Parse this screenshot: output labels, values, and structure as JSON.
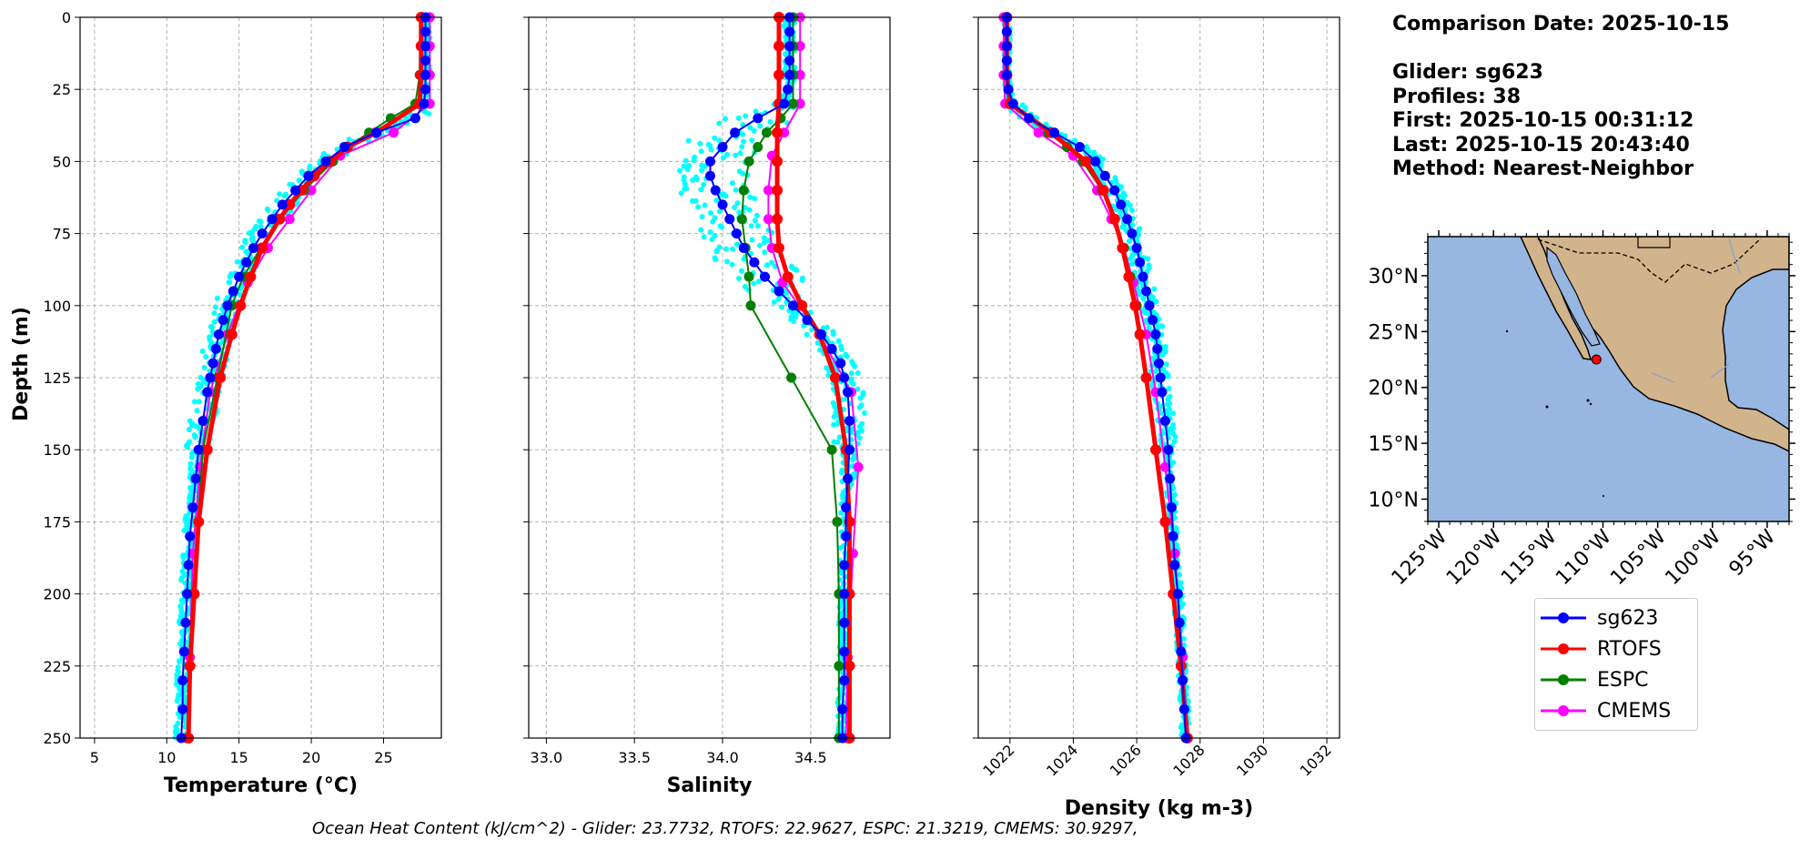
{
  "info": {
    "line1": "Comparison Date: 2025-10-15",
    "line2": "Glider: sg623",
    "line3": "Profiles: 38",
    "line4": "First: 2025-10-15 00:31:12",
    "line5": "Last: 2025-10-15 20:43:40",
    "line6": "Method: Nearest-Neighbor"
  },
  "footer": "Ocean Heat Content (kJ/cm^2) - Glider: 23.7732,  RTOFS: 22.9627,  ESPC: 21.3219,  CMEMS: 30.9297,",
  "legend": [
    {
      "name": "sg623",
      "color": "#0000ff"
    },
    {
      "name": "RTOFS",
      "color": "#ff0000"
    },
    {
      "name": "ESPC",
      "color": "#008000"
    },
    {
      "name": "CMEMS",
      "color": "#ff00ff"
    }
  ],
  "colors": {
    "scatter": "#00ffff",
    "land": "#d2b48c",
    "ocean": "#97b6e1"
  },
  "chart_data": [
    {
      "type": "line",
      "title": "",
      "xlabel": "Temperature (°C)",
      "ylabel": "Depth (m)",
      "xlim": [
        4,
        29
      ],
      "ylim": [
        250,
        0
      ],
      "xticks": [
        5,
        10,
        15,
        20,
        25
      ],
      "yticks": [
        0,
        25,
        50,
        75,
        100,
        125,
        150,
        175,
        200,
        225,
        250
      ],
      "series": [
        {
          "name": "sg623",
          "color": "#0000ff",
          "depth": [
            0,
            5,
            10,
            15,
            20,
            25,
            30,
            35,
            40,
            45,
            50,
            55,
            60,
            65,
            70,
            75,
            80,
            85,
            90,
            95,
            100,
            105,
            110,
            115,
            120,
            125,
            130,
            140,
            150,
            160,
            170,
            180,
            190,
            200,
            210,
            220,
            230,
            240,
            250
          ],
          "values": [
            27.9,
            27.9,
            27.9,
            27.9,
            27.9,
            27.9,
            27.8,
            27.2,
            24.5,
            22.3,
            21.0,
            19.8,
            18.9,
            18.0,
            17.3,
            16.6,
            16.0,
            15.5,
            15.0,
            14.6,
            14.2,
            13.9,
            13.6,
            13.4,
            13.2,
            13.0,
            12.8,
            12.5,
            12.2,
            12.0,
            11.8,
            11.6,
            11.5,
            11.4,
            11.3,
            11.2,
            11.1,
            11.1,
            11.0
          ]
        },
        {
          "name": "RTOFS",
          "color": "#ff0000",
          "depth": [
            0,
            10,
            20,
            30,
            40,
            45,
            50,
            55,
            60,
            65,
            70,
            80,
            90,
            100,
            110,
            125,
            150,
            175,
            200,
            225,
            250
          ],
          "values": [
            27.6,
            27.6,
            27.6,
            27.5,
            24.5,
            22.5,
            21.3,
            20.2,
            19.3,
            18.5,
            17.8,
            16.6,
            15.8,
            15.1,
            14.5,
            13.7,
            12.8,
            12.2,
            11.9,
            11.6,
            11.5
          ]
        },
        {
          "name": "ESPC",
          "color": "#008000",
          "depth": [
            0,
            10,
            20,
            30,
            35,
            40,
            45,
            50,
            60,
            70,
            80,
            90,
            100,
            125,
            150,
            200,
            250
          ],
          "values": [
            27.6,
            27.6,
            27.5,
            27.2,
            25.5,
            24.0,
            22.5,
            21.5,
            19.5,
            17.8,
            16.5,
            15.3,
            14.5,
            13.5,
            12.5,
            11.8,
            11.4
          ]
        },
        {
          "name": "CMEMS",
          "color": "#ff00ff",
          "depth": [
            0,
            10,
            20,
            30,
            40,
            48,
            60,
            70,
            80,
            92,
            110,
            130,
            156,
            186,
            222,
            250
          ],
          "values": [
            28.2,
            28.2,
            28.2,
            28.2,
            25.7,
            22.0,
            20.0,
            18.5,
            17.0,
            15.6,
            14.2,
            13.0,
            12.3,
            11.8,
            11.6,
            11.4
          ]
        }
      ]
    },
    {
      "type": "line",
      "title": "",
      "xlabel": "Salinity",
      "ylabel": "",
      "xlim": [
        32.9,
        34.95
      ],
      "ylim": [
        250,
        0
      ],
      "xticks": [
        33.0,
        33.5,
        34.0,
        34.5
      ],
      "series": [
        {
          "name": "sg623",
          "color": "#0000ff",
          "depth": [
            0,
            5,
            10,
            15,
            20,
            25,
            30,
            35,
            40,
            45,
            50,
            55,
            60,
            65,
            70,
            75,
            80,
            85,
            90,
            95,
            100,
            105,
            110,
            115,
            120,
            125,
            130,
            140,
            150,
            160,
            170,
            180,
            190,
            200,
            210,
            220,
            230,
            240,
            250
          ],
          "values": [
            34.38,
            34.38,
            34.38,
            34.38,
            34.38,
            34.37,
            34.35,
            34.2,
            34.07,
            34.0,
            33.93,
            33.93,
            33.96,
            34.0,
            34.04,
            34.08,
            34.12,
            34.18,
            34.24,
            34.32,
            34.4,
            34.48,
            34.56,
            34.62,
            34.67,
            34.69,
            34.71,
            34.72,
            34.72,
            34.71,
            34.7,
            34.7,
            34.69,
            34.69,
            34.69,
            34.69,
            34.69,
            34.68,
            34.68
          ]
        },
        {
          "name": "RTOFS",
          "color": "#ff0000",
          "depth": [
            0,
            10,
            20,
            30,
            40,
            50,
            60,
            70,
            80,
            90,
            100,
            110,
            125,
            150,
            175,
            200,
            225,
            250
          ],
          "values": [
            34.32,
            34.32,
            34.32,
            34.32,
            34.31,
            34.31,
            34.31,
            34.31,
            34.32,
            34.37,
            34.45,
            34.55,
            34.64,
            34.7,
            34.72,
            34.72,
            34.72,
            34.72
          ]
        },
        {
          "name": "ESPC",
          "color": "#008000",
          "depth": [
            0,
            10,
            20,
            30,
            35,
            40,
            45,
            50,
            60,
            70,
            80,
            90,
            100,
            125,
            150,
            175,
            200,
            225,
            250
          ],
          "values": [
            34.4,
            34.4,
            34.4,
            34.4,
            34.33,
            34.25,
            34.2,
            34.15,
            34.12,
            34.11,
            34.13,
            34.15,
            34.16,
            34.39,
            34.62,
            34.65,
            34.66,
            34.66,
            34.66
          ]
        },
        {
          "name": "CMEMS",
          "color": "#ff00ff",
          "depth": [
            0,
            10,
            20,
            30,
            40,
            48,
            60,
            70,
            80,
            92,
            110,
            130,
            156,
            186,
            222,
            250
          ],
          "values": [
            34.44,
            34.44,
            34.44,
            34.44,
            34.35,
            34.28,
            34.26,
            34.26,
            34.28,
            34.34,
            34.55,
            34.73,
            34.77,
            34.74,
            34.71,
            34.7
          ]
        }
      ]
    },
    {
      "type": "line",
      "title": "",
      "xlabel": "Density (kg m-3)",
      "ylabel": "",
      "xlim": [
        1021.0,
        1032.4
      ],
      "ylim": [
        250,
        0
      ],
      "xticks": [
        1022,
        1024,
        1026,
        1028,
        1030,
        1032
      ],
      "series": [
        {
          "name": "sg623",
          "color": "#0000ff",
          "depth": [
            0,
            5,
            10,
            15,
            20,
            25,
            30,
            35,
            40,
            45,
            50,
            55,
            60,
            65,
            70,
            75,
            80,
            85,
            90,
            95,
            100,
            105,
            110,
            115,
            120,
            125,
            130,
            140,
            150,
            160,
            170,
            180,
            190,
            200,
            210,
            220,
            230,
            240,
            250
          ],
          "values": [
            1021.9,
            1021.9,
            1021.9,
            1021.9,
            1021.9,
            1021.95,
            1022.1,
            1022.6,
            1023.4,
            1024.2,
            1024.7,
            1025.0,
            1025.3,
            1025.5,
            1025.7,
            1025.85,
            1026.0,
            1026.1,
            1026.2,
            1026.3,
            1026.4,
            1026.5,
            1026.6,
            1026.65,
            1026.7,
            1026.75,
            1026.8,
            1026.9,
            1027.0,
            1027.05,
            1027.1,
            1027.15,
            1027.2,
            1027.3,
            1027.35,
            1027.4,
            1027.45,
            1027.5,
            1027.55
          ]
        },
        {
          "name": "RTOFS",
          "color": "#ff0000",
          "depth": [
            0,
            10,
            20,
            30,
            40,
            50,
            60,
            70,
            80,
            90,
            100,
            110,
            125,
            150,
            175,
            200,
            225,
            250
          ],
          "values": [
            1021.9,
            1021.9,
            1021.9,
            1022.0,
            1023.3,
            1024.4,
            1024.95,
            1025.3,
            1025.55,
            1025.75,
            1025.95,
            1026.1,
            1026.3,
            1026.6,
            1026.9,
            1027.15,
            1027.4,
            1027.6
          ]
        },
        {
          "name": "ESPC",
          "color": "#008000",
          "depth": [
            0,
            10,
            20,
            30,
            35,
            40,
            45,
            50,
            60,
            70,
            80,
            90,
            100,
            125,
            150,
            175,
            200,
            225,
            250
          ],
          "values": [
            1021.9,
            1021.9,
            1021.9,
            1022.0,
            1022.6,
            1023.2,
            1023.8,
            1024.3,
            1024.9,
            1025.3,
            1025.6,
            1025.8,
            1026.0,
            1026.3,
            1026.6,
            1026.9,
            1027.2,
            1027.4,
            1027.6
          ]
        },
        {
          "name": "CMEMS",
          "color": "#ff00ff",
          "depth": [
            0,
            10,
            20,
            30,
            40,
            48,
            60,
            70,
            80,
            92,
            110,
            130,
            156,
            186,
            222,
            250
          ],
          "values": [
            1021.8,
            1021.8,
            1021.8,
            1021.85,
            1022.9,
            1024.0,
            1024.75,
            1025.2,
            1025.6,
            1025.9,
            1026.3,
            1026.6,
            1026.9,
            1027.2,
            1027.45,
            1027.6
          ]
        }
      ]
    },
    {
      "type": "map",
      "xlim": [
        -126,
        -93
      ],
      "ylim": [
        8,
        33.5
      ],
      "xticks": [
        -125,
        -120,
        -115,
        -110,
        -105,
        -100,
        -95
      ],
      "yticks": [
        10,
        15,
        20,
        25,
        30
      ],
      "xticklabels": [
        "125°W",
        "120°W",
        "115°W",
        "110°W",
        "105°W",
        "100°W",
        "95°W"
      ],
      "yticklabels": [
        "10°N",
        "15°N",
        "20°N",
        "25°N",
        "30°N"
      ],
      "glider_position": {
        "lon": -110.6,
        "lat": 22.5
      }
    }
  ]
}
